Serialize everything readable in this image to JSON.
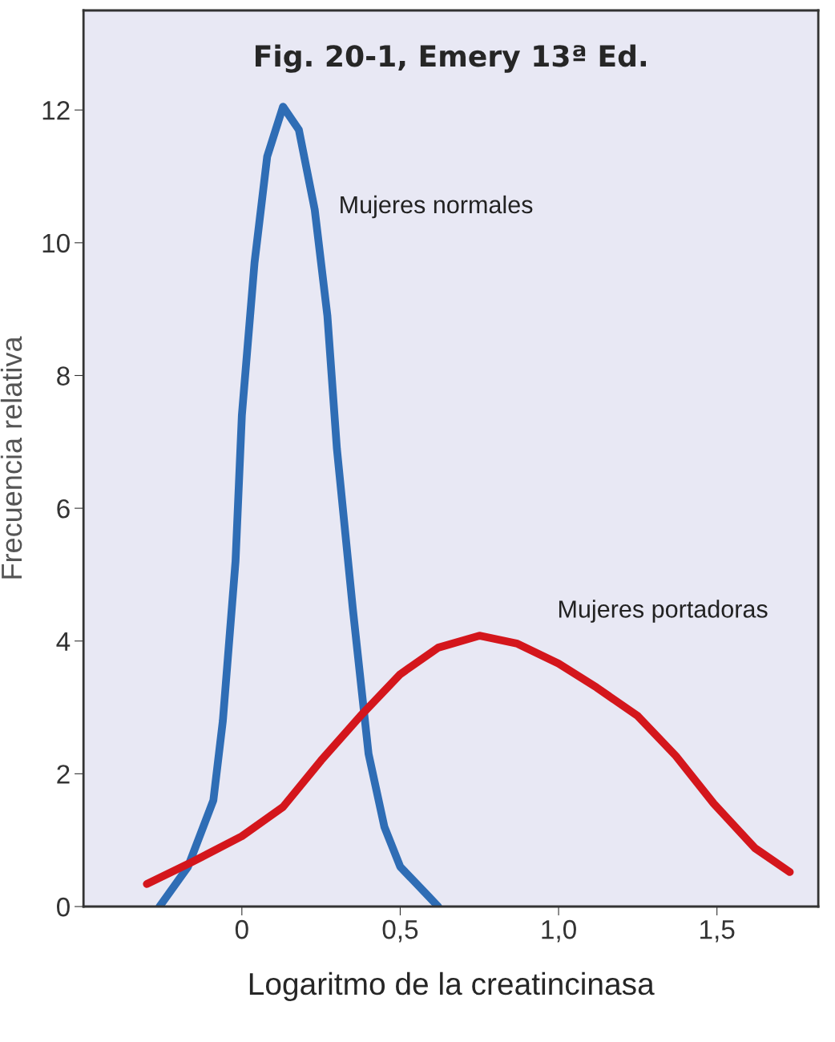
{
  "chart_data": {
    "type": "line",
    "title": "Fig. 20-1, Emery 13ª Ed.",
    "xlabel": "Logaritmo de la creatincinasa",
    "ylabel": "Frecuencia relativa",
    "xlim": [
      -0.5,
      1.82
    ],
    "ylim": [
      0,
      13.5
    ],
    "xticks": [
      0,
      {
        "value": 0.5,
        "label": "0,5"
      },
      {
        "value": 1.0,
        "label": "1,0"
      },
      {
        "value": 1.5,
        "label": "1,5"
      }
    ],
    "yticks": [
      0,
      2,
      4,
      6,
      8,
      10,
      12
    ],
    "grid": false,
    "legend": false,
    "marker": "none",
    "line_style": "solid",
    "series": [
      {
        "name": "Mujeres normales",
        "color": "#2f6db5",
        "x": [
          -0.26,
          -0.17,
          -0.09,
          -0.06,
          -0.02,
          0.0,
          0.04,
          0.08,
          0.13,
          0.18,
          0.23,
          0.27,
          0.3,
          0.35,
          0.4,
          0.45,
          0.5,
          0.58,
          0.62
        ],
        "values": [
          0,
          0.6,
          1.6,
          2.8,
          5.2,
          7.4,
          9.7,
          11.3,
          12.05,
          11.7,
          10.5,
          8.9,
          6.9,
          4.5,
          2.3,
          1.2,
          0.6,
          0.2,
          0
        ]
      },
      {
        "name": "Mujeres portadoras",
        "color": "#d4161c",
        "x": [
          -0.3,
          -0.17,
          0.0,
          0.13,
          0.25,
          0.38,
          0.5,
          0.62,
          0.75,
          0.87,
          1.0,
          1.12,
          1.25,
          1.37,
          1.49,
          1.62,
          1.73
        ],
        "values": [
          0.34,
          0.64,
          1.06,
          1.5,
          2.2,
          2.9,
          3.5,
          3.9,
          4.08,
          3.96,
          3.66,
          3.3,
          2.87,
          2.27,
          1.55,
          0.88,
          0.52
        ]
      }
    ]
  }
}
